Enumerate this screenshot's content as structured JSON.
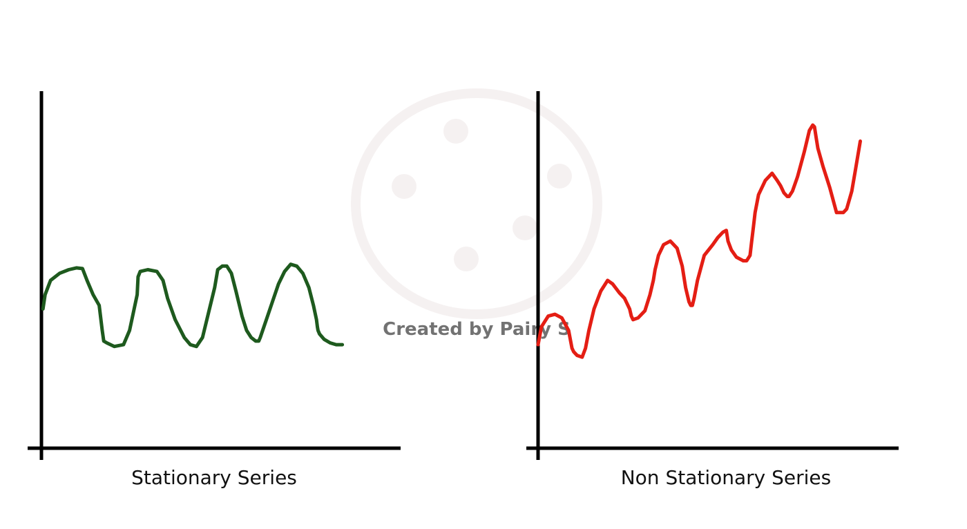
{
  "watermark": {
    "text": "Created by Pairy S",
    "color": "#e8e2e2"
  },
  "chart_data": [
    {
      "type": "line",
      "title": "Stationary Series",
      "xlabel": "",
      "ylabel": "",
      "grid": false,
      "axis_ticks": false,
      "xlim": [
        0,
        100
      ],
      "ylim": [
        0,
        100
      ],
      "series": [
        {
          "color": "#1e5a1e",
          "x": [
            0.5,
            1.2,
            3,
            6,
            9,
            11.5,
            13.5,
            15,
            17,
            19,
            20,
            20.5,
            21.5,
            24,
            27,
            29,
            30.5,
            31.5,
            31.8,
            32.5,
            35,
            38,
            40,
            41.5,
            44,
            47,
            49,
            51,
            53,
            55,
            57,
            58,
            59.5,
            61,
            62.5,
            64,
            66,
            67.5,
            69,
            70.5,
            71.5,
            72,
            72.8,
            74,
            76,
            78,
            80,
            82,
            84,
            86,
            88,
            89.5,
            90.5,
            90.8,
            91,
            91.5,
            93,
            95,
            97,
            99
          ],
          "y": [
            39,
            43,
            47,
            49,
            50,
            50.5,
            50.3,
            47,
            43,
            40,
            33,
            30,
            29.5,
            28.5,
            29,
            33,
            39,
            43,
            48,
            49.5,
            50,
            49.5,
            47,
            42,
            36,
            31,
            29,
            28.5,
            31,
            38,
            45,
            50,
            51,
            51,
            49,
            44,
            37,
            33,
            31,
            30,
            30,
            31,
            33,
            36,
            41,
            46,
            49.5,
            51.5,
            51,
            49,
            45,
            40,
            36,
            34,
            33,
            32,
            30.5,
            29.5,
            29,
            29
          ]
        }
      ]
    },
    {
      "type": "line",
      "title": "Non Stationary Series",
      "xlabel": "",
      "ylabel": "",
      "grid": false,
      "axis_ticks": false,
      "xlim": [
        0,
        100
      ],
      "ylim": [
        0,
        100
      ],
      "series": [
        {
          "color": "#e41e14",
          "x": [
            0,
            1,
            3,
            5,
            7,
            9,
            10,
            10.5,
            11.5,
            13,
            14,
            15,
            16.5,
            18.5,
            20.5,
            22,
            24,
            25.5,
            27,
            27.5,
            28,
            29.5,
            31.5,
            33,
            34,
            34.5,
            35,
            35.5,
            37,
            39,
            41,
            42.5,
            43.5,
            44.5,
            45,
            45.5,
            46,
            47,
            49,
            51.5,
            53,
            54.5,
            55.5,
            56,
            57,
            58.5,
            60.5,
            61.5,
            62.5,
            63,
            63.5,
            64,
            65,
            67,
            69,
            70.5,
            71.5,
            72.5,
            73.5,
            74,
            75,
            76.5,
            78.5,
            80,
            81,
            81.5,
            82,
            82.5,
            84,
            86,
            88,
            90,
            91,
            92.5,
            93.5,
            95
          ],
          "y": [
            29,
            34,
            37,
            37.5,
            36.5,
            33,
            28,
            27,
            26,
            25.5,
            28,
            33,
            39,
            44,
            47,
            46,
            43.5,
            42,
            39,
            37,
            36,
            36.5,
            38.5,
            43,
            47,
            50,
            52,
            54,
            57,
            58,
            56,
            51,
            45,
            41,
            40,
            40,
            42,
            47,
            54,
            57,
            59,
            60.5,
            61,
            58,
            55.5,
            53.5,
            52.5,
            52.5,
            54,
            58,
            62,
            66,
            71,
            75,
            77,
            75,
            73.5,
            71.5,
            70.5,
            70.5,
            72,
            76,
            83,
            89,
            90.5,
            90,
            87,
            84,
            79,
            73,
            66,
            66,
            67,
            72,
            77.5,
            86
          ]
        }
      ]
    }
  ]
}
